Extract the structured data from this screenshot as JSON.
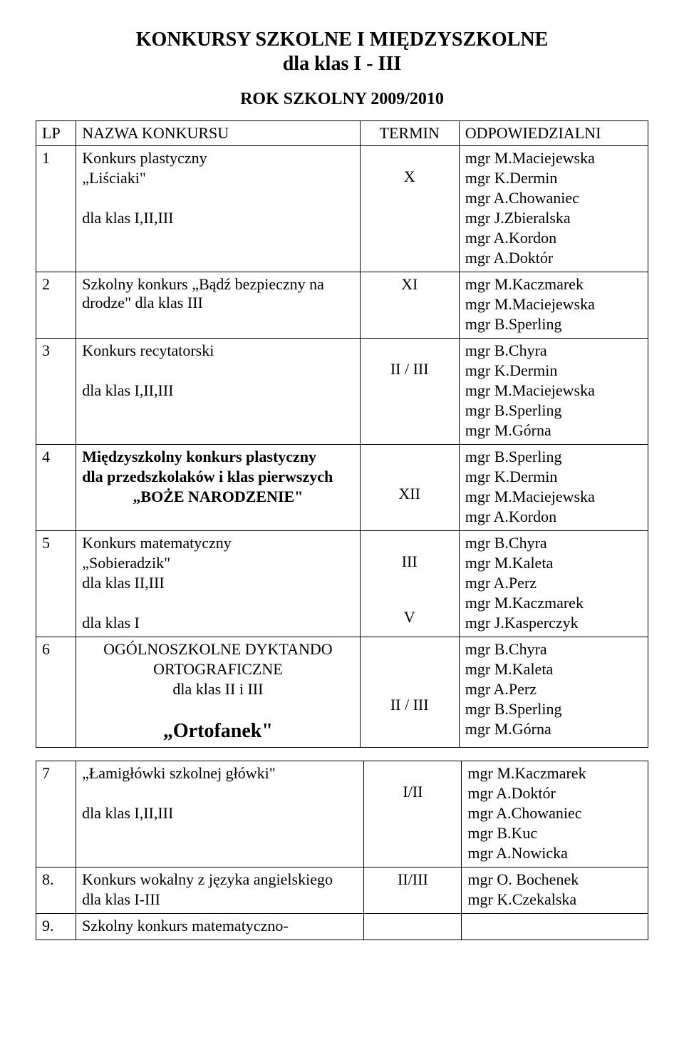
{
  "title": "KONKURSY SZKOLNE I MIĘDZYSZKOLNE",
  "subtitle": "dla klas I - III",
  "year": "ROK SZKOLNY 2009/2010",
  "header": {
    "lp": "LP",
    "name": "NAZWA KONKURSU",
    "term": "TERMIN",
    "resp": "ODPOWIEDZIALNI"
  },
  "rows": [
    {
      "lp": "1",
      "name_lines": [
        {
          "text": "Konkurs plastyczny",
          "bold": false,
          "center": false
        },
        {
          "text": "„Liściaki\"",
          "bold": false,
          "center": false
        },
        {
          "text": "",
          "bold": false,
          "center": false
        },
        {
          "text": "dla klas I,II,III",
          "bold": false,
          "center": false
        }
      ],
      "term_lines": [
        "",
        "X"
      ],
      "resp_lines": [
        "mgr M.Maciejewska",
        "mgr K.Dermin",
        "mgr A.Chowaniec",
        "mgr J.Zbieralska",
        "mgr A.Kordon",
        "mgr A.Doktór"
      ]
    },
    {
      "lp": "2",
      "name_lines": [
        {
          "text": "Szkolny konkurs „Bądź bezpieczny na drodze\" dla klas III",
          "bold": false,
          "center": false
        }
      ],
      "term_lines": [
        "XI"
      ],
      "resp_lines": [
        "mgr M.Kaczmarek",
        "mgr M.Maciejewska",
        "mgr B.Sperling"
      ]
    },
    {
      "lp": "3",
      "name_lines": [
        {
          "text": "Konkurs recytatorski",
          "bold": false,
          "center": false
        },
        {
          "text": "",
          "bold": false,
          "center": false
        },
        {
          "text": "dla klas I,II,III",
          "bold": false,
          "center": false
        }
      ],
      "term_lines": [
        "",
        "II / III"
      ],
      "resp_lines": [
        "mgr B.Chyra",
        "mgr K.Dermin",
        "mgr M.Maciejewska",
        "mgr B.Sperling",
        "mgr M.Górna"
      ]
    },
    {
      "lp": "4",
      "name_lines": [
        {
          "text": "Międzyszkolny konkurs plastyczny",
          "bold": true,
          "center": false
        },
        {
          "text": "dla przedszkolaków i klas pierwszych",
          "bold": true,
          "center": false
        },
        {
          "text": "„BOŻE NARODZENIE\"",
          "bold": true,
          "center": true
        }
      ],
      "term_lines": [
        "",
        "",
        "XII"
      ],
      "resp_lines": [
        "mgr B.Sperling",
        "mgr K.Dermin",
        "mgr M.Maciejewska",
        "mgr A.Kordon"
      ]
    },
    {
      "lp": "5",
      "name_lines": [
        {
          "text": "Konkurs matematyczny",
          "bold": false,
          "center": false
        },
        {
          "text": "„Sobieradzik\"",
          "bold": false,
          "center": false
        },
        {
          "text": "dla klas II,III",
          "bold": false,
          "center": false
        },
        {
          "text": "",
          "bold": false,
          "center": false
        },
        {
          "text": "dla klas I",
          "bold": false,
          "center": false
        }
      ],
      "term_lines": [
        "",
        "III",
        "",
        "",
        "V"
      ],
      "resp_lines": [
        "mgr B.Chyra",
        "mgr M.Kaleta",
        "mgr A.Perz",
        "mgr M.Kaczmarek",
        "mgr J.Kasperczyk"
      ]
    },
    {
      "lp": "6",
      "name_lines": [
        {
          "text": "OGÓLNOSZKOLNE DYKTANDO",
          "bold": false,
          "center": true
        },
        {
          "text": "ORTOGRAFICZNE",
          "bold": false,
          "center": true
        },
        {
          "text": "dla klas II i III",
          "bold": false,
          "center": true
        },
        {
          "text": "",
          "bold": false,
          "center": false
        },
        {
          "text": "„Ortofanek\"",
          "bold": true,
          "center": true,
          "big": true
        }
      ],
      "term_lines": [
        "",
        "",
        "",
        "II  / III"
      ],
      "resp_lines": [
        "mgr B.Chyra",
        "mgr M.Kaleta",
        "mgr A.Perz",
        "mgr B.Sperling",
        "mgr M.Górna"
      ]
    }
  ],
  "rows2": [
    {
      "lp": "7",
      "name_lines": [
        {
          "text": "„Łamigłówki szkolnej główki\"",
          "bold": false,
          "center": false
        },
        {
          "text": "",
          "bold": false,
          "center": false
        },
        {
          "text": "dla klas I,II,III",
          "bold": false,
          "center": false
        }
      ],
      "term_lines": [
        "",
        "I/II"
      ],
      "resp_lines": [
        "mgr M.Kaczmarek",
        "mgr A.Doktór",
        "mgr A.Chowaniec",
        "mgr B.Kuc",
        "mgr A.Nowicka"
      ]
    },
    {
      "lp": "8.",
      "name_lines": [
        {
          "text": "Konkurs wokalny z języka angielskiego",
          "bold": false,
          "center": false
        },
        {
          "text": "dla klas I-III",
          "bold": false,
          "center": false
        }
      ],
      "term_lines": [
        "II/III"
      ],
      "resp_lines": [
        "mgr O. Bochenek",
        "mgr K.Czekalska"
      ]
    },
    {
      "lp": "9.",
      "name_lines": [
        {
          "text": "Szkolny konkurs matematyczno-",
          "bold": false,
          "center": false
        }
      ],
      "term_lines": [
        ""
      ],
      "resp_lines": [
        ""
      ]
    }
  ]
}
